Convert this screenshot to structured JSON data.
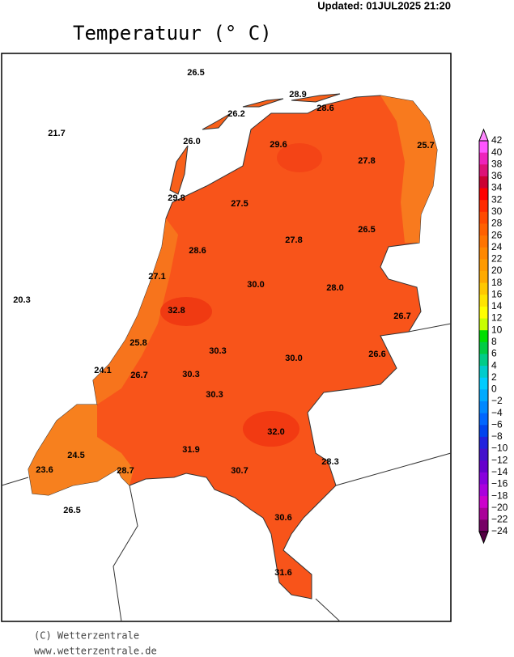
{
  "header": {
    "updated": "Updated:  01JUL2025  21:20",
    "title": "Temperatuur (° C)"
  },
  "stations": [
    "26.5",
    "28.9",
    "26.2",
    "28.6",
    "21.7",
    "26.0",
    "29.6",
    "27.8",
    "25.7",
    "29.8",
    "27.5",
    "27.8",
    "26.5",
    "28.6",
    "27.1",
    "30.0",
    "28.0",
    "20.3",
    "32.8",
    "26.7",
    "25.8",
    "30.3",
    "30.0",
    "26.6",
    "24.1",
    "26.7",
    "30.3",
    "30.3",
    "32.0",
    "24.5",
    "31.9",
    "28.3",
    "23.6",
    "28.7",
    "30.7",
    "26.5",
    "30.6",
    "31.6"
  ],
  "colorbar": [
    "42",
    "40",
    "38",
    "36",
    "34",
    "32",
    "30",
    "28",
    "26",
    "24",
    "22",
    "20",
    "18",
    "16",
    "14",
    "12",
    "10",
    "8",
    "6",
    "4",
    "2",
    "0",
    "−2",
    "−4",
    "−6",
    "−8",
    "−10",
    "−12",
    "−14",
    "−16",
    "−18",
    "−20",
    "−22",
    "−24"
  ],
  "footer": {
    "copyright": "(C) Wetterzentrale",
    "url": "www.wetterzentrale.de"
  }
}
